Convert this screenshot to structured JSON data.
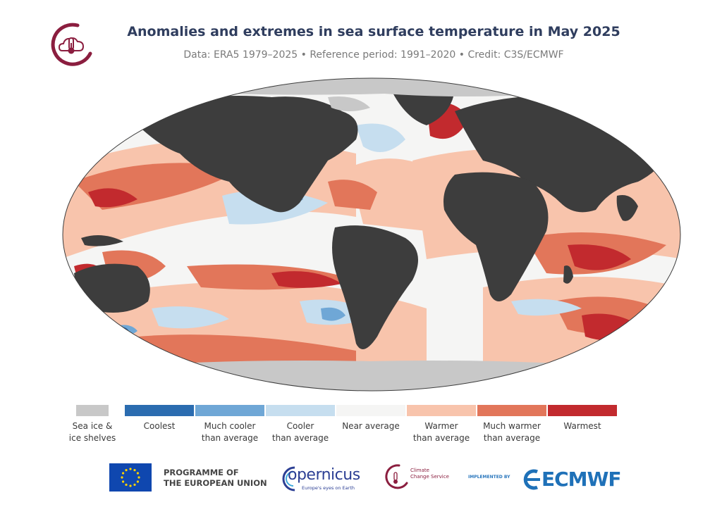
{
  "header": {
    "title": "Anomalies and extremes in sea surface temperature in May 2025",
    "subtitle": "Data: ERA5 1979–2025 • Reference period: 1991–2020 • Credit: C3S/ECMWF"
  },
  "colors": {
    "ocean_near": "#f5f5f4",
    "land": "#3d3d3d",
    "sea_ice": "#c8c8c8"
  },
  "legend": [
    {
      "label_lines": [
        "Sea ice &",
        "ice shelves"
      ],
      "color": "#c8c8c8"
    },
    {
      "label_lines": [
        "Coolest"
      ],
      "color": "#2b6cb0"
    },
    {
      "label_lines": [
        "Much cooler",
        "than average"
      ],
      "color": "#6fa7d6"
    },
    {
      "label_lines": [
        "Cooler",
        "than average"
      ],
      "color": "#c6deef"
    },
    {
      "label_lines": [
        "Near average"
      ],
      "color": "#f5f5f4"
    },
    {
      "label_lines": [
        "Warmer",
        "than average"
      ],
      "color": "#f8c4ac"
    },
    {
      "label_lines": [
        "Much warmer",
        "than average"
      ],
      "color": "#e2765a"
    },
    {
      "label_lines": [
        "Warmest"
      ],
      "color": "#c22a2e"
    }
  ],
  "footer": {
    "eu_line1": "PROGRAMME OF",
    "eu_line2": "THE EUROPEAN UNION",
    "copernicus_word": "opernicus",
    "copernicus_tagline": "Europe's eyes on Earth",
    "c3s_line1": "Climate",
    "c3s_line2": "Change Service",
    "implemented_by": "IMPLEMENTED BY",
    "ecmwf_word": "ECMWF"
  }
}
